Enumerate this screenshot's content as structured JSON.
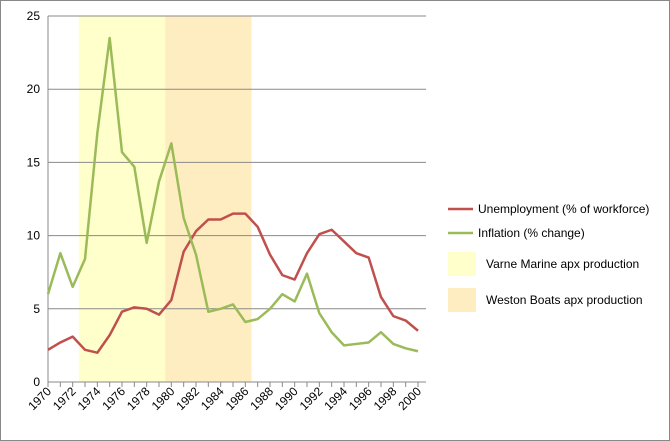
{
  "chart_data": {
    "type": "line",
    "x": [
      1970,
      1971,
      1972,
      1973,
      1974,
      1975,
      1976,
      1977,
      1978,
      1979,
      1980,
      1981,
      1982,
      1983,
      1984,
      1985,
      1986,
      1987,
      1988,
      1989,
      1990,
      1991,
      1992,
      1993,
      1994,
      1995,
      1996,
      1997,
      1998,
      1999,
      2000
    ],
    "xticks": [
      "1970",
      "1972",
      "1974",
      "1976",
      "1978",
      "1980",
      "1982",
      "1984",
      "1986",
      "1988",
      "1990",
      "1992",
      "1994",
      "1996",
      "1998",
      "2000"
    ],
    "yticks": [
      "0",
      "5",
      "10",
      "15",
      "20",
      "25"
    ],
    "ylim": [
      0,
      25
    ],
    "xlim": [
      1970,
      2000
    ],
    "grid": true,
    "legend_placement": "right",
    "series": [
      {
        "name": "Unemployment (% of workforce)",
        "color": "#c0504d",
        "values": [
          2.2,
          2.7,
          3.1,
          2.2,
          2.0,
          3.2,
          4.8,
          5.1,
          5.0,
          4.6,
          5.6,
          8.9,
          10.3,
          11.1,
          11.1,
          11.5,
          11.5,
          10.6,
          8.7,
          7.3,
          7.0,
          8.8,
          10.1,
          10.4,
          9.6,
          8.8,
          8.5,
          5.8,
          4.5,
          4.2,
          3.5
        ]
      },
      {
        "name": "Inflation (% change)",
        "color": "#9bbb59",
        "values": [
          6.0,
          8.8,
          6.5,
          8.4,
          17.0,
          23.5,
          15.7,
          14.7,
          9.5,
          13.7,
          16.3,
          11.2,
          8.7,
          4.8,
          5.0,
          5.3,
          4.1,
          4.3,
          5.0,
          6.0,
          5.5,
          7.4,
          4.7,
          3.4,
          2.5,
          2.6,
          2.7,
          3.4,
          2.6,
          2.3,
          2.1
        ]
      }
    ],
    "bands": [
      {
        "name": "Varne Marine apx production",
        "color": "#ffffcc",
        "from": 1972.5,
        "to": 1979.5
      },
      {
        "name": "Weston Boats apx production",
        "color": "#ffedc2",
        "from": 1979.5,
        "to": 1986.5
      }
    ]
  }
}
